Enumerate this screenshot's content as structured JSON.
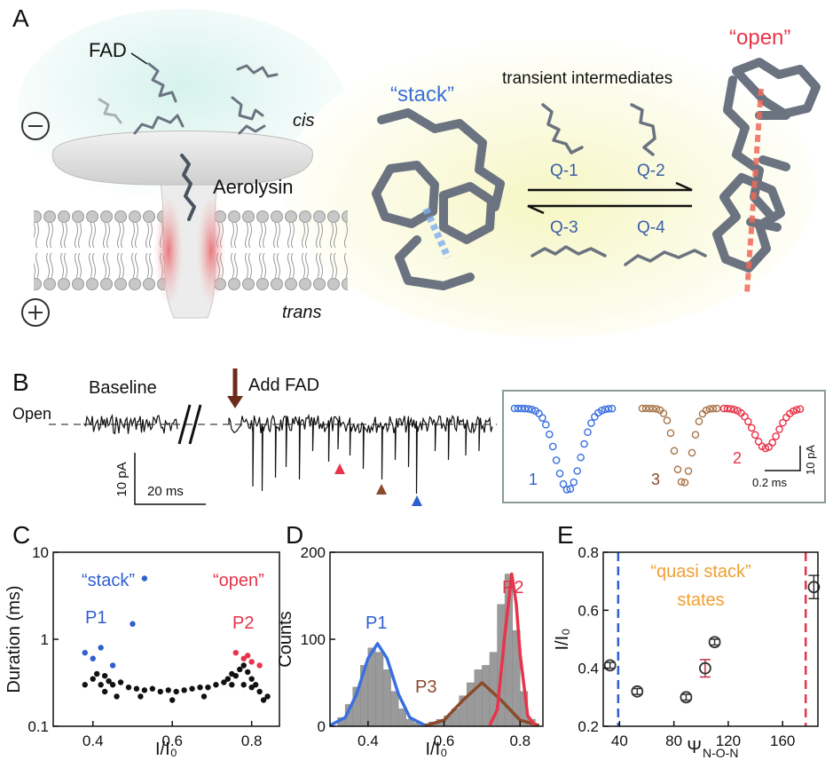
{
  "panel_a": {
    "label": "A",
    "fad": "FAD",
    "cis": "cis",
    "aerolysin": "Aerolysin",
    "trans": "trans",
    "stack": "“stack”",
    "open": "“open”",
    "intermediates": "transient intermediates",
    "states": [
      "Q-1",
      "Q-2",
      "Q-3",
      "Q-4"
    ]
  },
  "panel_b": {
    "label": "B",
    "baseline": "Baseline",
    "open": "Open",
    "add": "Add FAD",
    "scale_current": "10 pA",
    "scale_time": "20 ms",
    "events": [
      "1",
      "3",
      "2"
    ],
    "inset_scale_time": "0.2 ms",
    "inset_scale_current": "10 pA"
  },
  "chart_data": [
    {
      "type": "scatter",
      "label": "C",
      "x_label": "I/I₀",
      "y_label": "Duration (ms)",
      "xlim": [
        0.3,
        0.87
      ],
      "xticks": [
        0.4,
        0.6,
        0.8
      ],
      "ylim": [
        0.1,
        10
      ],
      "yticks": [
        0.1,
        1,
        10
      ],
      "ylog": true,
      "annotations": [
        {
          "text": "“stack”",
          "color": "#2f5fd0"
        },
        {
          "text": "“open”",
          "color": "#e8334a"
        },
        {
          "text": "P1",
          "color": "#2f5fd0"
        },
        {
          "text": "P2",
          "color": "#e8334a"
        }
      ],
      "series": [
        {
          "color": "#111111",
          "x": [
            0.38,
            0.4,
            0.41,
            0.42,
            0.43,
            0.44,
            0.45,
            0.47,
            0.49,
            0.51,
            0.53,
            0.55,
            0.57,
            0.59,
            0.61,
            0.63,
            0.65,
            0.67,
            0.69,
            0.71,
            0.73,
            0.74,
            0.75,
            0.76,
            0.77,
            0.78,
            0.79,
            0.8,
            0.81,
            0.82,
            0.84,
            0.43,
            0.46,
            0.75,
            0.78,
            0.8,
            0.52,
            0.6,
            0.68,
            0.83
          ],
          "values": [
            0.3,
            0.35,
            0.4,
            0.3,
            0.38,
            0.33,
            0.3,
            0.32,
            0.28,
            0.27,
            0.26,
            0.27,
            0.25,
            0.26,
            0.25,
            0.26,
            0.27,
            0.28,
            0.28,
            0.3,
            0.32,
            0.35,
            0.4,
            0.38,
            0.45,
            0.5,
            0.42,
            0.35,
            0.3,
            0.25,
            0.22,
            0.25,
            0.22,
            0.3,
            0.3,
            0.28,
            0.22,
            0.2,
            0.22,
            0.2
          ]
        },
        {
          "color": "#2f5fd0",
          "x": [
            0.4,
            0.42,
            0.45,
            0.5,
            0.53,
            0.38
          ],
          "values": [
            0.6,
            0.8,
            0.5,
            1.5,
            5,
            0.7
          ]
        },
        {
          "color": "#e8334a",
          "x": [
            0.78,
            0.8,
            0.76,
            0.82,
            0.79
          ],
          "values": [
            0.6,
            0.55,
            0.7,
            0.5,
            0.65
          ]
        }
      ]
    },
    {
      "type": "histogram",
      "label": "D",
      "x_label": "I/I₀",
      "y_label": "Counts",
      "xlim": [
        0.3,
        0.86
      ],
      "xticks": [
        0.4,
        0.6,
        0.8
      ],
      "ylim": [
        0,
        200
      ],
      "yticks": [
        0,
        100,
        200
      ],
      "color": "#9a9a9a",
      "bins": [
        0.32,
        0.34,
        0.36,
        0.38,
        0.4,
        0.42,
        0.44,
        0.46,
        0.48,
        0.5,
        0.52,
        0.54,
        0.56,
        0.58,
        0.6,
        0.62,
        0.64,
        0.66,
        0.68,
        0.7,
        0.72,
        0.74,
        0.76,
        0.78,
        0.8,
        0.82,
        0.84
      ],
      "values": [
        10,
        25,
        45,
        70,
        90,
        85,
        65,
        40,
        20,
        8,
        4,
        3,
        5,
        8,
        12,
        20,
        35,
        50,
        65,
        70,
        85,
        140,
        175,
        110,
        40,
        8
      ],
      "annotations": [
        {
          "text": "P1",
          "color": "#2f5fd0"
        },
        {
          "text": "P3",
          "color": "#8b4a2b"
        },
        {
          "text": "P2",
          "color": "#e8334a"
        }
      ],
      "series": [
        {
          "color": "#3a6fe0",
          "x": [
            0.3,
            0.34,
            0.37,
            0.4,
            0.425,
            0.45,
            0.48,
            0.51,
            0.55
          ],
          "values": [
            1,
            10,
            37,
            78,
            95,
            78,
            37,
            10,
            1
          ]
        },
        {
          "color": "#8b4a2b",
          "x": [
            0.55,
            0.6,
            0.65,
            0.7,
            0.75,
            0.8,
            0.85
          ],
          "values": [
            0.6,
            7,
            30,
            50,
            30,
            7,
            1
          ]
        },
        {
          "color": "#e8334a",
          "x": [
            0.72,
            0.74,
            0.76,
            0.778,
            0.79,
            0.8,
            0.82,
            0.84
          ],
          "values": [
            1,
            19,
            106,
            175,
            140,
            83,
            12,
            0.5
          ]
        }
      ]
    },
    {
      "type": "errorbar",
      "label": "E",
      "x_label": "Ψ",
      "x_label_sub": "N-O-N",
      "y_label": "I/I₀",
      "xlim": [
        28,
        186
      ],
      "xticks": [
        40,
        80,
        120,
        160
      ],
      "ylim": [
        0.2,
        0.8
      ],
      "yticks": [
        0.2,
        0.4,
        0.6,
        0.8
      ],
      "annotations": [
        {
          "text": "“quasi stack”",
          "color": "#f0a030"
        },
        {
          "text": "states",
          "color": "#f0a030"
        }
      ],
      "reference_lines": [
        {
          "x": 39,
          "color": "#2f5fd0"
        },
        {
          "x": 177,
          "color": "#e8334a"
        }
      ],
      "series": [
        {
          "color": "#333333",
          "x": [
            33,
            53,
            89,
            103,
            110,
            183
          ],
          "values": [
            0.41,
            0.32,
            0.3,
            0.4,
            0.49,
            0.68
          ],
          "errors": [
            0.01,
            0.01,
            0.01,
            0.03,
            0.01,
            0.04
          ]
        }
      ]
    }
  ]
}
